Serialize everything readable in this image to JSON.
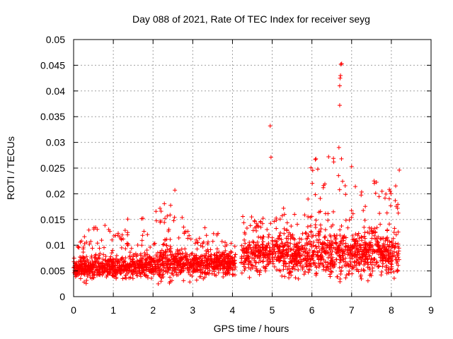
{
  "chart_data": {
    "type": "scatter",
    "title": "Day 088 of 2021, Rate Of TEC Index for receiver seyg",
    "xlabel": "GPS time / hours",
    "ylabel": "ROTI / TECUs",
    "xlim": [
      0,
      9
    ],
    "ylim": [
      0,
      0.05
    ],
    "xticks": [
      0,
      1,
      2,
      3,
      4,
      5,
      6,
      7,
      8,
      9
    ],
    "xtick_labels": [
      "0",
      "1",
      "2",
      "3",
      "4",
      "5",
      "6",
      "7",
      "8",
      "9"
    ],
    "yticks": [
      0,
      0.005,
      0.01,
      0.015,
      0.02,
      0.025,
      0.03,
      0.035,
      0.04,
      0.045,
      0.05
    ],
    "ytick_labels": [
      "0",
      "0.005",
      "0.01",
      "0.015",
      "0.02",
      "0.025",
      "0.03",
      "0.035",
      "0.04",
      "0.045",
      "0.05"
    ],
    "grid": true,
    "marker": "+",
    "color": "#ff0000",
    "data_gap_hours": [
      4.08,
      4.22
    ],
    "envelope": {
      "x": [
        0.0,
        0.3,
        0.8,
        1.0,
        1.3,
        1.8,
        2.0,
        2.3,
        2.55,
        2.8,
        3.0,
        3.4,
        3.8,
        4.05,
        4.25,
        4.6,
        4.9,
        5.2,
        5.6,
        6.0,
        6.3,
        6.7,
        7.0,
        7.3,
        7.6,
        7.9,
        8.2
      ],
      "baseline": [
        0.0052,
        0.0055,
        0.0058,
        0.0056,
        0.0057,
        0.006,
        0.006,
        0.0062,
        0.0063,
        0.0062,
        0.006,
        0.0062,
        0.0063,
        0.0063,
        0.0075,
        0.008,
        0.0085,
        0.0085,
        0.008,
        0.0085,
        0.0085,
        0.0085,
        0.008,
        0.0082,
        0.009,
        0.0078,
        0.0085
      ],
      "upper": [
        0.008,
        0.013,
        0.014,
        0.012,
        0.015,
        0.016,
        0.016,
        0.019,
        0.021,
        0.014,
        0.0135,
        0.0135,
        0.0115,
        0.011,
        0.017,
        0.015,
        0.018,
        0.02,
        0.017,
        0.027,
        0.026,
        0.029,
        0.025,
        0.02,
        0.023,
        0.0205,
        0.0245
      ],
      "lower": [
        0.0035,
        0.0025,
        0.003,
        0.003,
        0.0032,
        0.003,
        0.003,
        0.0015,
        0.0025,
        0.0025,
        0.0025,
        0.003,
        0.003,
        0.0035,
        0.0035,
        0.0035,
        0.0035,
        0.003,
        0.003,
        0.0018,
        0.0025,
        0.0015,
        0.0035,
        0.003,
        0.003,
        0.003,
        0.003
      ]
    },
    "notable_points": [
      {
        "x": 4.95,
        "y": 0.0332
      },
      {
        "x": 4.97,
        "y": 0.0271
      },
      {
        "x": 6.7,
        "y": 0.0372
      },
      {
        "x": 6.7,
        "y": 0.041
      },
      {
        "x": 6.71,
        "y": 0.0425
      },
      {
        "x": 6.72,
        "y": 0.043
      },
      {
        "x": 6.73,
        "y": 0.0452
      },
      {
        "x": 6.75,
        "y": 0.0453
      },
      {
        "x": 6.68,
        "y": 0.029
      },
      {
        "x": 6.1,
        "y": 0.0268
      },
      {
        "x": 6.42,
        "y": 0.0272
      },
      {
        "x": 6.55,
        "y": 0.0262
      },
      {
        "x": 7.0,
        "y": 0.0253
      },
      {
        "x": 2.55,
        "y": 0.0207
      },
      {
        "x": 8.2,
        "y": 0.0246
      }
    ]
  }
}
